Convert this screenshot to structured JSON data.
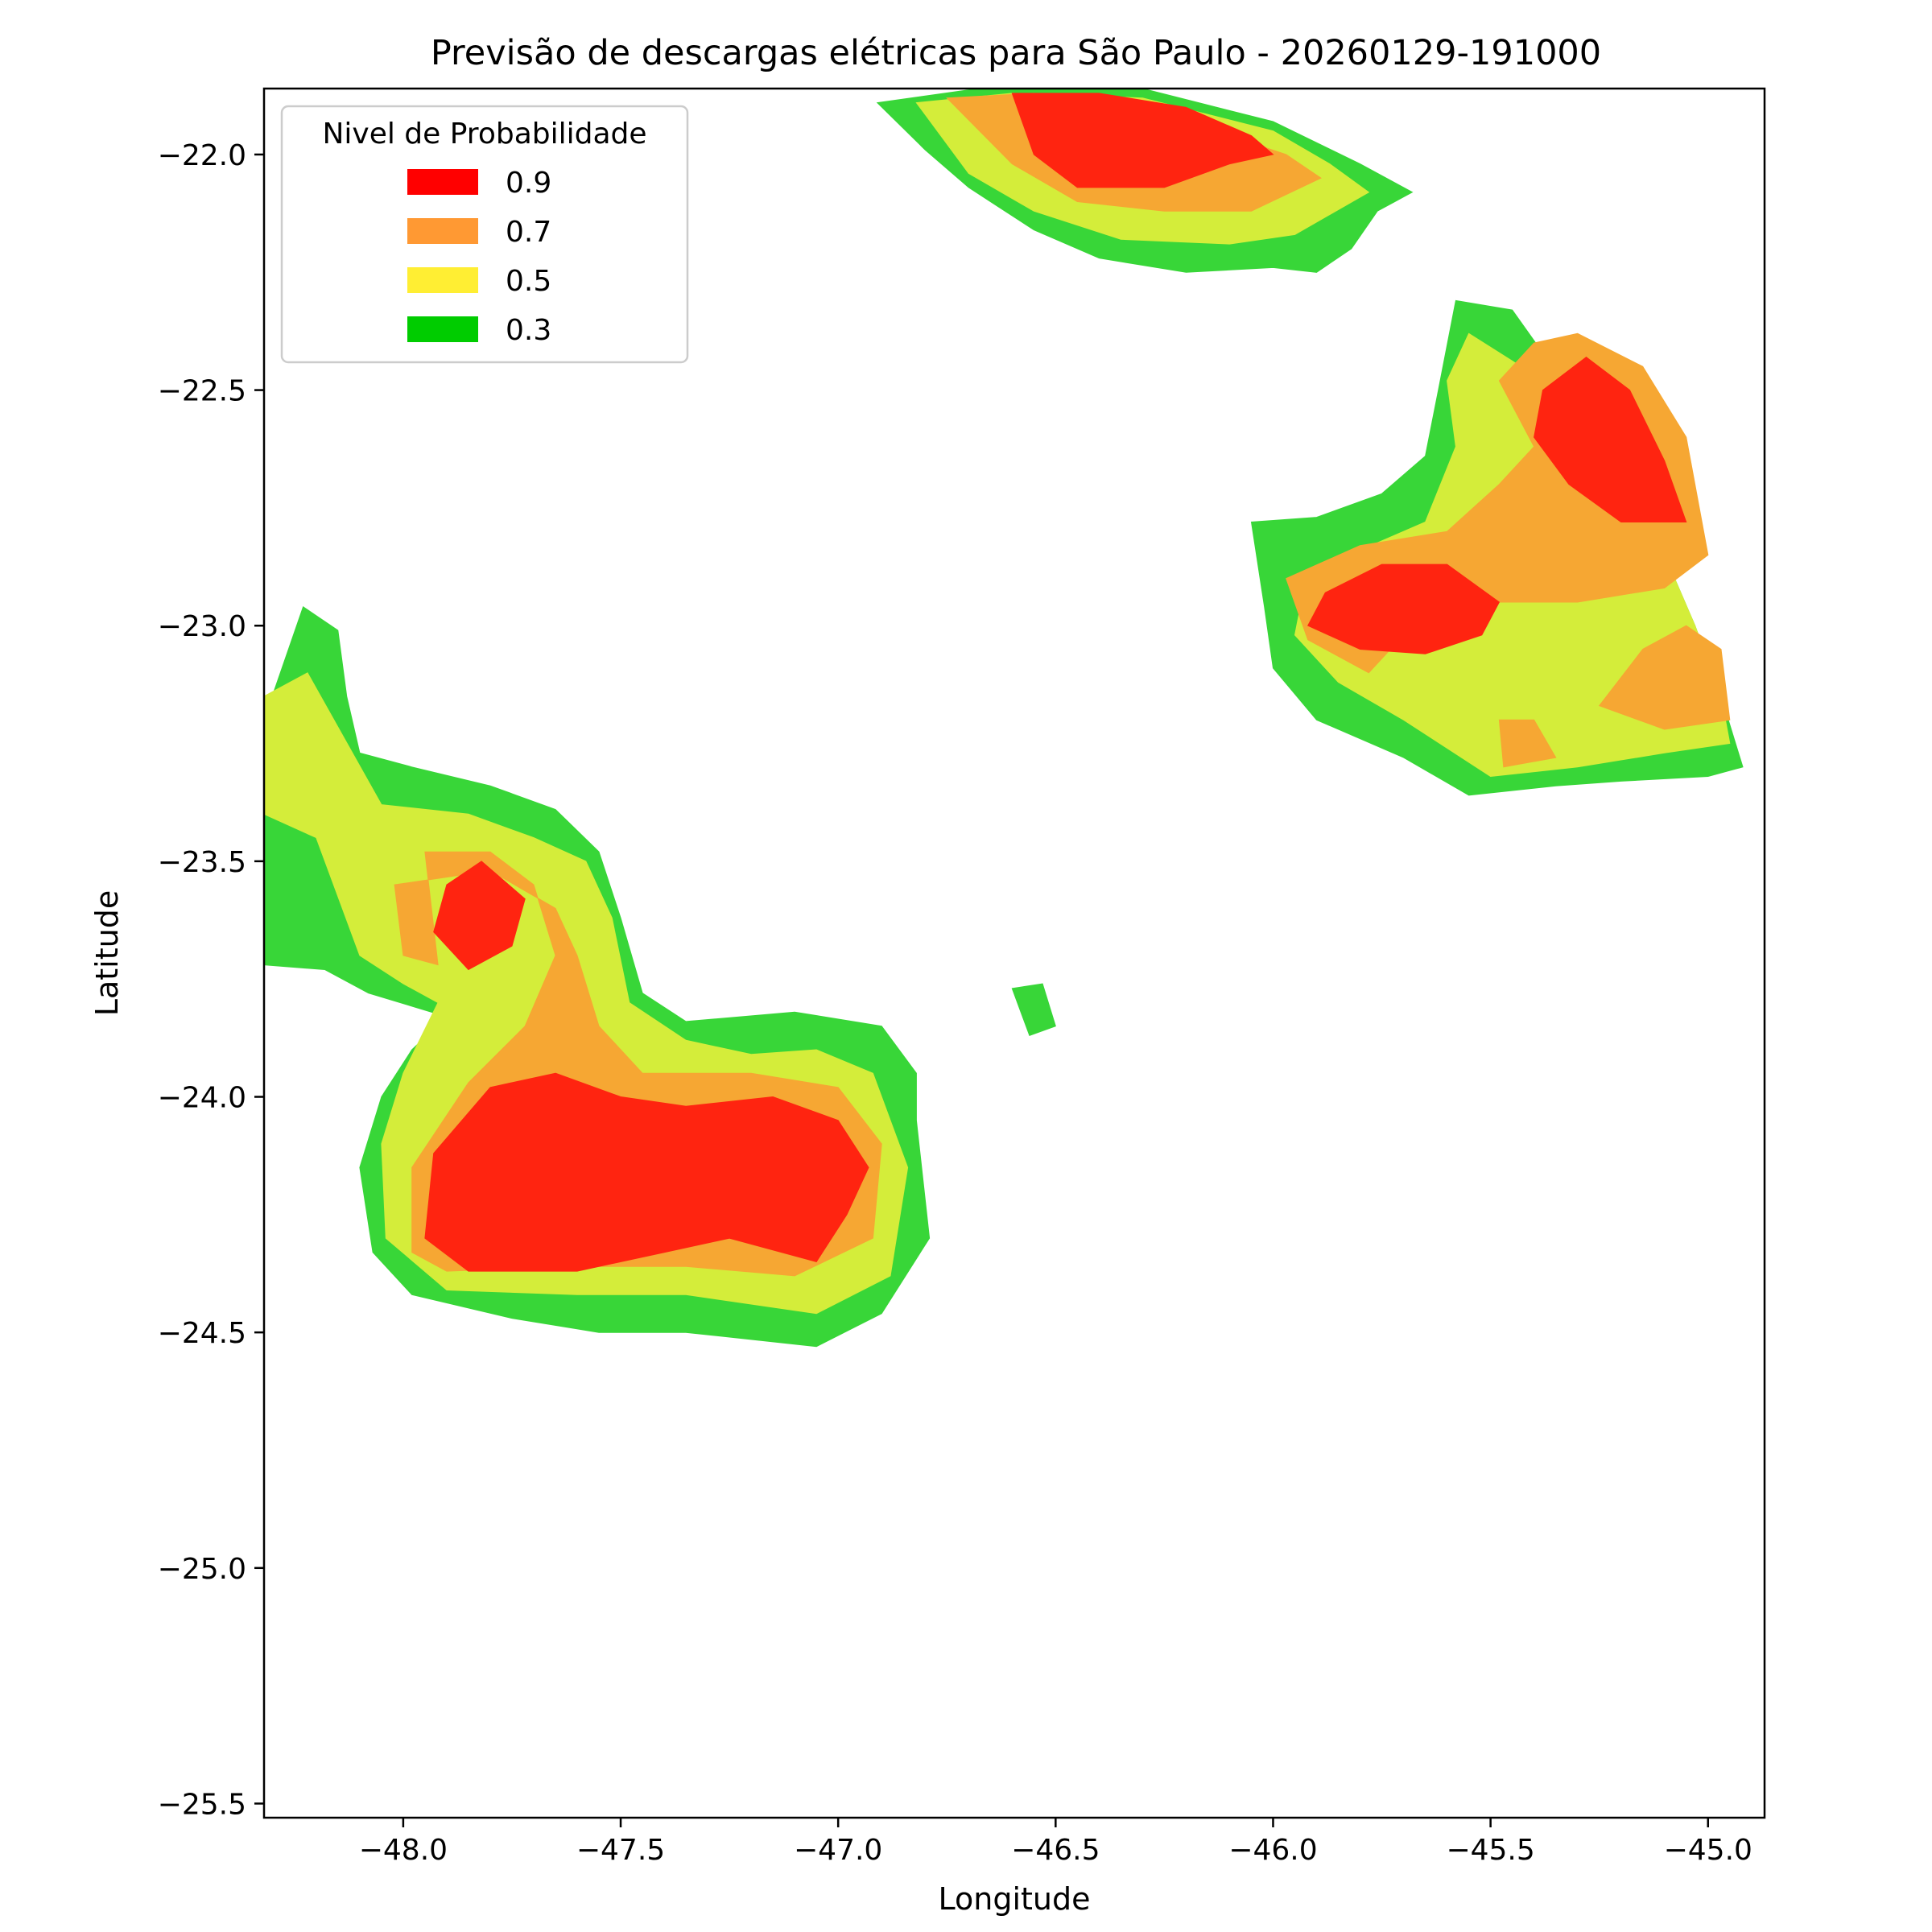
{
  "chart_data": {
    "type": "contour",
    "title": "Previsão de descargas elétricas para São Paulo - 20260129-191000",
    "xlabel": "Longitude",
    "ylabel": "Latitude",
    "xlim": [
      -48.32,
      -44.87
    ],
    "ylim": [
      -25.53,
      -21.86
    ],
    "xticks": [
      -48.0,
      -47.5,
      -47.0,
      -46.5,
      -46.0,
      -45.5,
      -45.0
    ],
    "xtick_labels": [
      "−48.0",
      "−47.5",
      "−47.0",
      "−46.5",
      "−46.0",
      "−45.5",
      "−45.0"
    ],
    "yticks": [
      -22.0,
      -22.5,
      -23.0,
      -23.5,
      -24.0,
      -24.5,
      -25.0,
      -25.5
    ],
    "ytick_labels": [
      "−22.0",
      "−22.5",
      "−23.0",
      "−23.5",
      "−24.0",
      "−24.5",
      "−25.0",
      "−25.5"
    ],
    "grid": false,
    "legend": {
      "title": "Nivel de Probabilidade",
      "placement": "upper-left",
      "entries": [
        {
          "label": "0.9",
          "color": "#ff0000"
        },
        {
          "label": "0.7",
          "color": "#ff9933"
        },
        {
          "label": "0.5",
          "color": "#ffee33"
        },
        {
          "label": "0.3",
          "color": "#00cc00"
        }
      ]
    },
    "fill_colors": {
      "0.3": "#38d638",
      "0.5": "#d4ed3a",
      "0.7": "#f6a733",
      "0.9": "#ff2410"
    },
    "levels": [
      {
        "level": "0.3",
        "regions": [
          [
            [
              -46.91,
              -21.89
            ],
            [
              -46.6,
              -21.85
            ],
            [
              -46.3,
              -21.86
            ],
            [
              -46.0,
              -21.93
            ],
            [
              -45.8,
              -22.02
            ],
            [
              -45.68,
              -22.08
            ],
            [
              -45.76,
              -22.12
            ],
            [
              -45.82,
              -22.2
            ],
            [
              -45.9,
              -22.25
            ],
            [
              -46.0,
              -22.24
            ],
            [
              -46.2,
              -22.25
            ],
            [
              -46.4,
              -22.22
            ],
            [
              -46.55,
              -22.16
            ],
            [
              -46.7,
              -22.07
            ],
            [
              -46.8,
              -21.99
            ]
          ],
          [
            [
              -45.58,
              -22.31
            ],
            [
              -45.45,
              -22.33
            ],
            [
              -45.35,
              -22.46
            ],
            [
              -45.22,
              -22.65
            ],
            [
              -45.1,
              -22.85
            ],
            [
              -45.03,
              -23.0
            ],
            [
              -44.97,
              -23.15
            ],
            [
              -44.92,
              -23.3
            ],
            [
              -45.0,
              -23.32
            ],
            [
              -45.2,
              -23.33
            ],
            [
              -45.35,
              -23.34
            ],
            [
              -45.55,
              -23.36
            ],
            [
              -45.7,
              -23.28
            ],
            [
              -45.9,
              -23.2
            ],
            [
              -46.0,
              -23.09
            ],
            [
              -46.02,
              -22.96
            ],
            [
              -46.05,
              -22.78
            ],
            [
              -45.9,
              -22.77
            ],
            [
              -45.75,
              -22.72
            ],
            [
              -45.65,
              -22.64
            ],
            [
              -45.62,
              -22.5
            ]
          ],
          [
            [
              -48.23,
              -22.96
            ],
            [
              -48.15,
              -23.01
            ],
            [
              -48.13,
              -23.15
            ],
            [
              -48.1,
              -23.27
            ],
            [
              -47.98,
              -23.3
            ],
            [
              -47.8,
              -23.34
            ],
            [
              -47.65,
              -23.39
            ],
            [
              -47.55,
              -23.48
            ],
            [
              -47.5,
              -23.62
            ],
            [
              -47.45,
              -23.78
            ],
            [
              -47.35,
              -23.84
            ],
            [
              -47.1,
              -23.82
            ],
            [
              -46.9,
              -23.85
            ],
            [
              -46.82,
              -23.95
            ],
            [
              -46.82,
              -24.05
            ],
            [
              -46.79,
              -24.3
            ],
            [
              -46.9,
              -24.46
            ],
            [
              -47.05,
              -24.53
            ],
            [
              -47.35,
              -24.5
            ],
            [
              -47.55,
              -24.5
            ],
            [
              -47.75,
              -24.47
            ],
            [
              -47.98,
              -24.42
            ],
            [
              -48.07,
              -24.33
            ],
            [
              -48.1,
              -24.15
            ],
            [
              -48.05,
              -24.0
            ],
            [
              -47.98,
              -23.9
            ],
            [
              -47.9,
              -23.83
            ],
            [
              -48.08,
              -23.78
            ],
            [
              -48.18,
              -23.73
            ],
            [
              -48.32,
              -23.72
            ],
            [
              -48.32,
              -23.2
            ]
          ],
          [
            [
              -46.6,
              -23.77
            ],
            [
              -46.53,
              -23.76
            ],
            [
              -46.5,
              -23.85
            ],
            [
              -46.56,
              -23.87
            ]
          ]
        ]
      },
      {
        "level": "0.5",
        "regions": [
          [
            [
              -46.82,
              -21.89
            ],
            [
              -46.6,
              -21.87
            ],
            [
              -46.3,
              -21.88
            ],
            [
              -46.0,
              -21.95
            ],
            [
              -45.87,
              -22.02
            ],
            [
              -45.78,
              -22.08
            ],
            [
              -45.95,
              -22.17
            ],
            [
              -46.1,
              -22.19
            ],
            [
              -46.35,
              -22.18
            ],
            [
              -46.55,
              -22.12
            ],
            [
              -46.7,
              -22.04
            ]
          ],
          [
            [
              -45.55,
              -22.38
            ],
            [
              -45.43,
              -22.45
            ],
            [
              -45.32,
              -22.55
            ],
            [
              -45.22,
              -22.7
            ],
            [
              -45.1,
              -22.85
            ],
            [
              -45.03,
              -23.0
            ],
            [
              -44.97,
              -23.15
            ],
            [
              -44.95,
              -23.25
            ],
            [
              -45.1,
              -23.27
            ],
            [
              -45.3,
              -23.3
            ],
            [
              -45.5,
              -23.32
            ],
            [
              -45.7,
              -23.2
            ],
            [
              -45.85,
              -23.12
            ],
            [
              -45.95,
              -23.02
            ],
            [
              -45.92,
              -22.88
            ],
            [
              -45.8,
              -22.84
            ],
            [
              -45.65,
              -22.78
            ],
            [
              -45.58,
              -22.62
            ],
            [
              -45.6,
              -22.48
            ]
          ],
          [
            [
              -48.22,
              -23.1
            ],
            [
              -48.32,
              -23.15
            ],
            [
              -48.32,
              -23.4
            ],
            [
              -48.2,
              -23.45
            ],
            [
              -48.1,
              -23.7
            ],
            [
              -48.0,
              -23.76
            ],
            [
              -47.92,
              -23.8
            ],
            [
              -48.0,
              -23.95
            ],
            [
              -48.05,
              -24.1
            ],
            [
              -48.04,
              -24.3
            ],
            [
              -47.9,
              -24.41
            ],
            [
              -47.6,
              -24.42
            ],
            [
              -47.35,
              -24.42
            ],
            [
              -47.05,
              -24.46
            ],
            [
              -46.88,
              -24.38
            ],
            [
              -46.84,
              -24.15
            ],
            [
              -46.92,
              -23.95
            ],
            [
              -47.05,
              -23.9
            ],
            [
              -47.2,
              -23.91
            ],
            [
              -47.35,
              -23.88
            ],
            [
              -47.48,
              -23.8
            ],
            [
              -47.52,
              -23.62
            ],
            [
              -47.58,
              -23.5
            ],
            [
              -47.7,
              -23.45
            ],
            [
              -47.85,
              -23.4
            ],
            [
              -48.05,
              -23.38
            ]
          ]
        ]
      },
      {
        "level": "0.7",
        "regions": [
          [
            [
              -46.75,
              -21.88
            ],
            [
              -46.55,
              -21.87
            ],
            [
              -46.3,
              -21.9
            ],
            [
              -46.1,
              -21.96
            ],
            [
              -45.97,
              -22.0
            ],
            [
              -45.89,
              -22.05
            ],
            [
              -46.05,
              -22.12
            ],
            [
              -46.25,
              -22.12
            ],
            [
              -46.45,
              -22.1
            ],
            [
              -46.6,
              -22.02
            ]
          ],
          [
            [
              -45.4,
              -22.62
            ],
            [
              -45.48,
              -22.48
            ],
            [
              -45.4,
              -22.4
            ],
            [
              -45.3,
              -22.38
            ],
            [
              -45.15,
              -22.45
            ],
            [
              -45.05,
              -22.6
            ],
            [
              -45.0,
              -22.85
            ],
            [
              -45.1,
              -22.92
            ],
            [
              -45.3,
              -22.95
            ],
            [
              -45.52,
              -22.95
            ],
            [
              -45.65,
              -22.97
            ],
            [
              -45.78,
              -23.1
            ],
            [
              -45.92,
              -23.03
            ],
            [
              -45.97,
              -22.9
            ],
            [
              -45.8,
              -22.83
            ],
            [
              -45.6,
              -22.8
            ],
            [
              -45.48,
              -22.7
            ]
          ],
          [
            [
              -45.15,
              -23.05
            ],
            [
              -45.05,
              -23.0
            ],
            [
              -44.97,
              -23.05
            ],
            [
              -44.95,
              -23.2
            ],
            [
              -45.1,
              -23.22
            ],
            [
              -45.25,
              -23.17
            ]
          ],
          [
            [
              -45.4,
              -23.2
            ],
            [
              -45.48,
              -23.2
            ],
            [
              -45.47,
              -23.3
            ],
            [
              -45.35,
              -23.28
            ]
          ],
          [
            [
              -47.95,
              -23.48
            ],
            [
              -47.8,
              -23.48
            ],
            [
              -47.7,
              -23.55
            ],
            [
              -47.65,
              -23.7
            ],
            [
              -47.72,
              -23.85
            ],
            [
              -47.85,
              -23.97
            ],
            [
              -47.98,
              -24.15
            ],
            [
              -47.98,
              -24.33
            ],
            [
              -47.9,
              -24.37
            ],
            [
              -47.6,
              -24.36
            ],
            [
              -47.35,
              -24.36
            ],
            [
              -47.1,
              -24.38
            ],
            [
              -46.92,
              -24.3
            ],
            [
              -46.9,
              -24.1
            ],
            [
              -47.0,
              -23.98
            ],
            [
              -47.2,
              -23.95
            ],
            [
              -47.45,
              -23.95
            ],
            [
              -47.55,
              -23.85
            ],
            [
              -47.6,
              -23.7
            ],
            [
              -47.65,
              -23.6
            ],
            [
              -47.8,
              -23.52
            ],
            [
              -48.02,
              -23.55
            ],
            [
              -48.0,
              -23.7
            ],
            [
              -47.92,
              -23.72
            ]
          ]
        ]
      },
      {
        "level": "0.9",
        "regions": [
          [
            [
              -46.6,
              -21.87
            ],
            [
              -46.4,
              -21.87
            ],
            [
              -46.2,
              -21.9
            ],
            [
              -46.05,
              -21.96
            ],
            [
              -46.0,
              -22.0
            ],
            [
              -46.1,
              -22.02
            ],
            [
              -46.25,
              -22.07
            ],
            [
              -46.45,
              -22.07
            ],
            [
              -46.55,
              -22.0
            ]
          ],
          [
            [
              -45.28,
              -22.43
            ],
            [
              -45.18,
              -22.5
            ],
            [
              -45.1,
              -22.65
            ],
            [
              -45.05,
              -22.78
            ],
            [
              -45.2,
              -22.78
            ],
            [
              -45.32,
              -22.7
            ],
            [
              -45.4,
              -22.6
            ],
            [
              -45.38,
              -22.5
            ]
          ],
          [
            [
              -45.6,
              -22.87
            ],
            [
              -45.75,
              -22.87
            ],
            [
              -45.88,
              -22.93
            ],
            [
              -45.92,
              -23.0
            ],
            [
              -45.8,
              -23.05
            ],
            [
              -45.65,
              -23.06
            ],
            [
              -45.52,
              -23.02
            ],
            [
              -45.48,
              -22.95
            ]
          ],
          [
            [
              -47.82,
              -23.5
            ],
            [
              -47.9,
              -23.55
            ],
            [
              -47.93,
              -23.65
            ],
            [
              -47.85,
              -23.73
            ],
            [
              -47.75,
              -23.68
            ],
            [
              -47.72,
              -23.58
            ]
          ],
          [
            [
              -47.65,
              -23.95
            ],
            [
              -47.8,
              -23.98
            ],
            [
              -47.93,
              -24.12
            ],
            [
              -47.95,
              -24.3
            ],
            [
              -47.85,
              -24.37
            ],
            [
              -47.6,
              -24.37
            ],
            [
              -47.4,
              -24.33
            ],
            [
              -47.25,
              -24.3
            ],
            [
              -47.05,
              -24.35
            ],
            [
              -46.98,
              -24.25
            ],
            [
              -46.93,
              -24.15
            ],
            [
              -47.0,
              -24.05
            ],
            [
              -47.15,
              -24.0
            ],
            [
              -47.35,
              -24.02
            ],
            [
              -47.5,
              -24.0
            ]
          ]
        ]
      }
    ]
  }
}
